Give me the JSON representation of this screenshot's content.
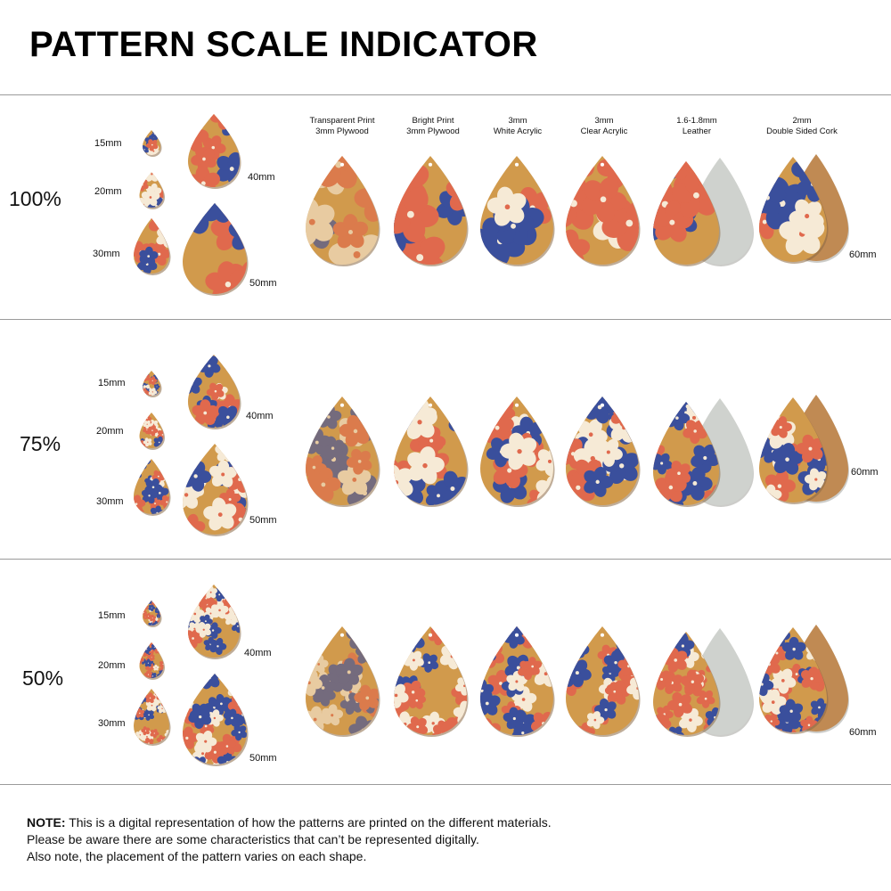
{
  "title": "PATTERN SCALE INDICATOR",
  "materials": [
    {
      "line1": "Transparent Print",
      "line2": "3mm Plywood"
    },
    {
      "line1": "Bright Print",
      "line2": "3mm Plywood"
    },
    {
      "line1": "3mm",
      "line2": "White Acrylic"
    },
    {
      "line1": "3mm",
      "line2": "Clear Acrylic"
    },
    {
      "line1": "1.6-1.8mm",
      "line2": "Leather"
    },
    {
      "line1": "2mm",
      "line2": "Double Sided Cork"
    }
  ],
  "sections": [
    {
      "scale": "100%",
      "sizes": {
        "s15": "15mm",
        "s20": "20mm",
        "s30": "30mm",
        "s40": "40mm",
        "s50": "50mm",
        "s60": "60mm"
      }
    },
    {
      "scale": "75%",
      "sizes": {
        "s15": "15mm",
        "s20": "20mm",
        "s30": "30mm",
        "s40": "40mm",
        "s50": "50mm",
        "s60": "60mm"
      }
    },
    {
      "scale": "50%",
      "sizes": {
        "s15": "15mm",
        "s20": "20mm",
        "s30": "30mm",
        "s40": "40mm",
        "s50": "50mm",
        "s60": "60mm"
      }
    }
  ],
  "note": {
    "label": "NOTE:",
    "line1": " This is a digital representation of how the patterns are printed on the different materials.",
    "line2": "Please be aware there are some characteristics that can’t be represented digitally.",
    "line3": "Also note, the placement of the pattern varies on each shape."
  },
  "colors": {
    "wood": "#d19a4c",
    "coral": "#e0694d",
    "navy": "#3a4f9c",
    "cream": "#f6ead6",
    "leather_back": "#cfd2ce",
    "cork": "#c08a53"
  }
}
